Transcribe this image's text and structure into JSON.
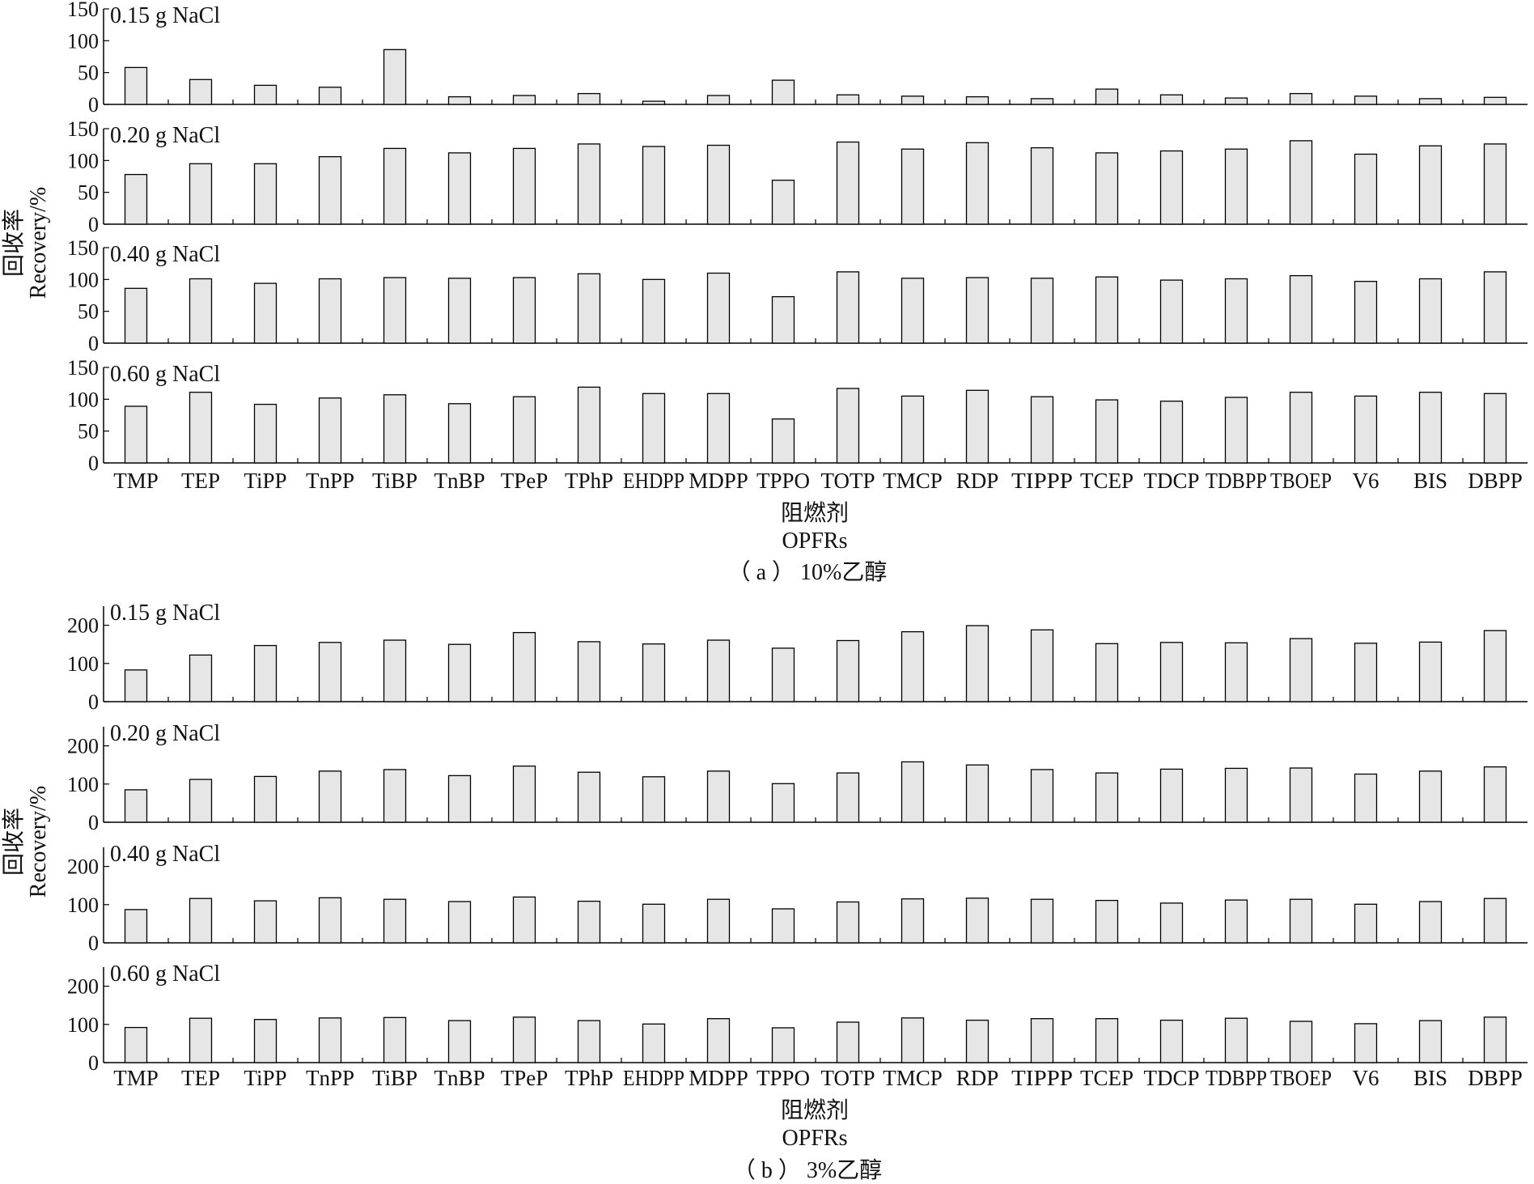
{
  "chart_data": [
    {
      "type": "bar",
      "caption": "（ a ） 10%乙醇",
      "ylabel_cn": "回收率",
      "ylabel_en": "Recovery/%",
      "xlabel_cn": "阻燃剂",
      "xlabel_en": "OPFRs",
      "ylim": [
        0,
        150
      ],
      "yticks": [
        0,
        50,
        100,
        150
      ],
      "categories": [
        "TMP",
        "TEP",
        "TiPP",
        "TnPP",
        "TiBP",
        "TnBP",
        "TPeP",
        "TPhP",
        "EHDPP",
        "MDPP",
        "TPPO",
        "TOTP",
        "TMCP",
        "RDP",
        "TIPPP",
        "TCEP",
        "TDCP",
        "TDBPP",
        "TBOEP",
        "V6",
        "BIS",
        "DBPP"
      ],
      "series": [
        {
          "name": "0.15 g NaCl",
          "values": [
            58,
            39,
            30,
            27,
            86,
            12,
            14,
            17,
            5,
            14,
            38,
            15,
            13,
            12,
            9,
            24,
            15,
            10,
            17,
            13,
            9,
            11
          ]
        },
        {
          "name": "0.20 g NaCl",
          "values": [
            78,
            95,
            95,
            106,
            119,
            112,
            119,
            126,
            122,
            124,
            69,
            129,
            118,
            128,
            120,
            112,
            115,
            118,
            131,
            110,
            123,
            126
          ]
        },
        {
          "name": "0.40 g NaCl",
          "values": [
            86,
            101,
            94,
            101,
            103,
            102,
            103,
            109,
            100,
            110,
            73,
            112,
            102,
            103,
            102,
            104,
            99,
            101,
            106,
            97,
            101,
            112
          ]
        },
        {
          "name": "0.60 g NaCl",
          "values": [
            89,
            111,
            92,
            102,
            107,
            93,
            104,
            119,
            109,
            109,
            69,
            117,
            105,
            114,
            104,
            99,
            97,
            103,
            111,
            105,
            111,
            109
          ]
        }
      ]
    },
    {
      "type": "bar",
      "caption": "（ b ） 3%乙醇",
      "ylabel_cn": "回收率",
      "ylabel_en": "Recovery/%",
      "xlabel_cn": "阻燃剂",
      "xlabel_en": "OPFRs",
      "ylim": [
        0,
        250
      ],
      "yticks": [
        0,
        100,
        200
      ],
      "categories": [
        "TMP",
        "TEP",
        "TiPP",
        "TnPP",
        "TiBP",
        "TnBP",
        "TPeP",
        "TPhP",
        "EHDPP",
        "MDPP",
        "TPPO",
        "TOTP",
        "TMCP",
        "RDP",
        "TIPPP",
        "TCEP",
        "TDCP",
        "TDBPP",
        "TBOEP",
        "V6",
        "BIS",
        "DBPP"
      ],
      "series": [
        {
          "name": "0.15 g NaCl",
          "values": [
            83,
            122,
            147,
            155,
            161,
            150,
            181,
            157,
            151,
            161,
            140,
            160,
            183,
            199,
            188,
            152,
            155,
            154,
            165,
            153,
            156,
            186
          ]
        },
        {
          "name": "0.20 g NaCl",
          "values": [
            85,
            112,
            120,
            134,
            138,
            122,
            147,
            131,
            119,
            134,
            101,
            129,
            158,
            150,
            138,
            129,
            139,
            141,
            142,
            126,
            134,
            145
          ]
        },
        {
          "name": "0.40 g NaCl",
          "values": [
            87,
            116,
            110,
            118,
            114,
            108,
            120,
            109,
            101,
            114,
            89,
            107,
            115,
            117,
            114,
            111,
            104,
            112,
            114,
            101,
            108,
            116
          ]
        },
        {
          "name": "0.60 g NaCl",
          "values": [
            92,
            116,
            113,
            117,
            118,
            110,
            119,
            110,
            101,
            115,
            91,
            106,
            117,
            111,
            115,
            115,
            111,
            116,
            108,
            102,
            110,
            119
          ]
        }
      ]
    }
  ]
}
